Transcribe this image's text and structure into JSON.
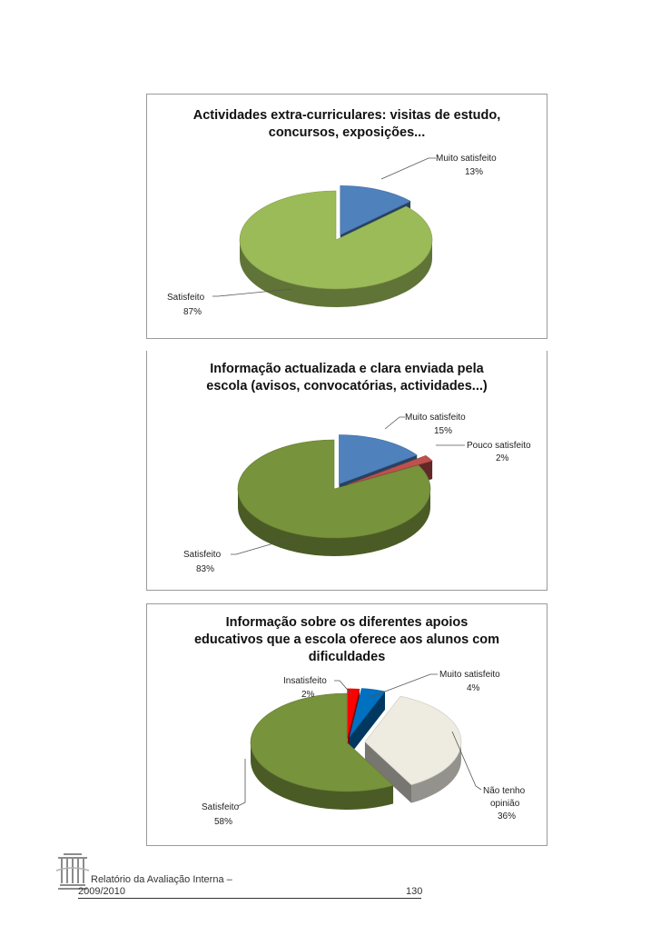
{
  "chart_data": [
    {
      "type": "pie",
      "title": "Actividades extra-curriculares: visitas de estudo, concursos, exposições...",
      "categories": [
        "Muito satisfeito",
        "Satisfeito"
      ],
      "values": [
        13,
        87
      ],
      "value_labels": [
        "13%",
        "87%"
      ],
      "colors": [
        "#4f81bd",
        "#9bbb59"
      ]
    },
    {
      "type": "pie",
      "title": "Informação actualizada e clara enviada pela escola (avisos, convocatórias, actividades...)",
      "categories": [
        "Muito satisfeito",
        "Pouco satisfeito",
        "Satisfeito"
      ],
      "values": [
        15,
        2,
        83
      ],
      "value_labels": [
        "15%",
        "2%",
        "83%"
      ],
      "colors": [
        "#4f81bd",
        "#c0504d",
        "#77933c"
      ]
    },
    {
      "type": "pie",
      "title": "Informação sobre os diferentes apoios educativos que a escola oferece aos alunos com dificuldades",
      "categories": [
        "Insatisfeito",
        "Muito satisfeito",
        "Não tenho opinião",
        "Satisfeito"
      ],
      "values": [
        2,
        4,
        36,
        58
      ],
      "value_labels": [
        "2%",
        "4%",
        "36%",
        "58%"
      ],
      "colors": [
        "#ff0000",
        "#0070c0",
        "#eeece1",
        "#77933c"
      ]
    }
  ],
  "charts": [
    {
      "title_lines": [
        "Actividades extra-curriculares: visitas de estudo,",
        "concursos, exposições..."
      ],
      "labels": [
        {
          "name": "Muito satisfeito",
          "pct": "13%"
        },
        {
          "name": "Satisfeito",
          "pct": "87%"
        }
      ]
    },
    {
      "title_lines": [
        "Informação actualizada e clara enviada pela",
        "escola (avisos, convocatórias, actividades...)"
      ],
      "labels": [
        {
          "name": "Muito satisfeito",
          "pct": "15%"
        },
        {
          "name": "Pouco satisfeito",
          "pct": "2%"
        },
        {
          "name": "Satisfeito",
          "pct": "83%"
        }
      ]
    },
    {
      "title_lines": [
        "Informação sobre os diferentes apoios",
        "educativos que a escola oferece aos alunos com",
        "dificuldades"
      ],
      "labels": [
        {
          "name": "Insatisfeito",
          "pct": "2%"
        },
        {
          "name": "Muito satisfeito",
          "pct": "4%"
        },
        {
          "name_line1": "Não tenho",
          "name_line2": "opinião",
          "pct": "36%"
        },
        {
          "name": "Satisfeito",
          "pct": "58%"
        }
      ]
    }
  ],
  "footer": {
    "report": "Relatório da Avaliação Interna –",
    "year": "2009/2010",
    "page": "130"
  }
}
